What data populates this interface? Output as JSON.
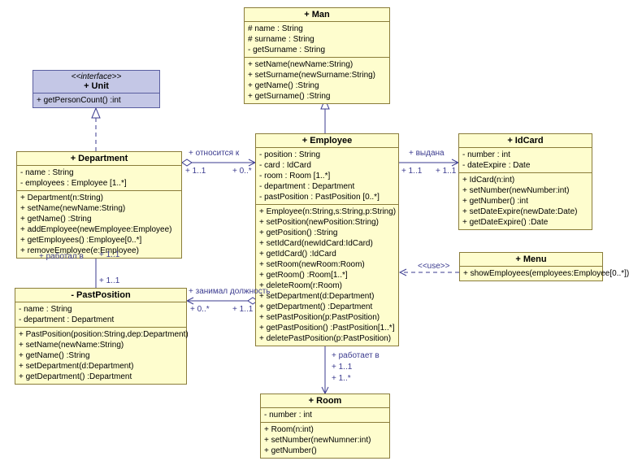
{
  "colors": {
    "classFill": "#fefdce",
    "classBorder": "#8a7c3a",
    "interfaceFill": "#c4c7e6",
    "interfaceBorder": "#5a5ea0",
    "relationColor": "#3b3b8f"
  },
  "classes": {
    "unit": {
      "stereotype": "<<interface>>",
      "name": "+ Unit",
      "attrs": [],
      "ops": [
        "+ getPersonCount() :int"
      ]
    },
    "man": {
      "name": "+ Man",
      "attrs": [
        "# name : String",
        "# surname : String",
        "- getSurname : String"
      ],
      "ops": [
        "+ setName(newName:String)",
        "+ setSurname(newSurname:String)",
        "+ getName() :String",
        "+ getSurname() :String"
      ]
    },
    "department": {
      "name": "+ Department",
      "attrs": [
        "- name : String",
        "- employees : Employee [1..*]"
      ],
      "ops": [
        "+ Department(n:String)",
        "+ setName(newName:String)",
        "+ getName() :String",
        "+ addEmployee(newEmployee:Employee)",
        "+ getEmployees() :Employee[0..*]",
        "+ removeEmployee(e:Employee)"
      ]
    },
    "employee": {
      "name": "+ Employee",
      "attrs": [
        "- position : String",
        "- card : IdCard",
        "- room : Room [1..*]",
        "- department : Department",
        "- pastPosition : PastPosition [0..*]"
      ],
      "ops": [
        "+ Employee(n:String,s:String,p:String)",
        "+ setPosition(newPosition:String)",
        "+ getPosition() :String",
        "+ setIdCard(newIdCard:IdCard)",
        "+ getIdCard() :IdCard",
        "+ setRoom(newRoom:Room)",
        "+ getRoom() :Room[1..*]",
        "+ deleteRoom(r:Room)",
        "+ setDepartment(d:Department)",
        "+ getDepartment() :Department",
        "+ setPastPosition(p:PastPosition)",
        "+ getPastPosition() :PastPosition[1..*]",
        "+ deletePastPosition(p:PastPosition)"
      ]
    },
    "idcard": {
      "name": "+ IdCard",
      "attrs": [
        "- number : int",
        "- dateExpire : Date"
      ],
      "ops": [
        "+ IdCard(n:int)",
        "+ setNumber(newNumber:int)",
        "+ getNumber() :int",
        "+ setDateExpire(newDate:Date)",
        "+ getDateExpire() :Date"
      ]
    },
    "pastposition": {
      "name": "- PastPosition",
      "attrs": [
        "- name : String",
        "- department : Department"
      ],
      "ops": [
        "+ PastPosition(position:String,dep:Department)",
        "+ setName(newName:String)",
        "+ getName() :String",
        "+ setDepartment(d:Department)",
        "+ getDepartment() :Department"
      ]
    },
    "menu": {
      "name": "+ Menu",
      "attrs": [],
      "ops": [
        "+ showEmployees(employees:Employee[0..*])"
      ]
    },
    "room": {
      "name": "+ Room",
      "attrs": [
        "- number : int"
      ],
      "ops": [
        "+ Room(n:int)",
        "+ setNumber(newNumner:int)",
        "+ getNumber()"
      ]
    }
  },
  "labels": {
    "rel1": "+ относится к",
    "rel2": "+ выдана",
    "rel3": "+ работал в",
    "rel4": "+ занимал должность",
    "rel5": "+ работает в",
    "use": "<<use>>"
  },
  "mults": {
    "m11": "+ 1..1",
    "m0s": "+ 0..*",
    "m1s": "+ 1..*"
  }
}
